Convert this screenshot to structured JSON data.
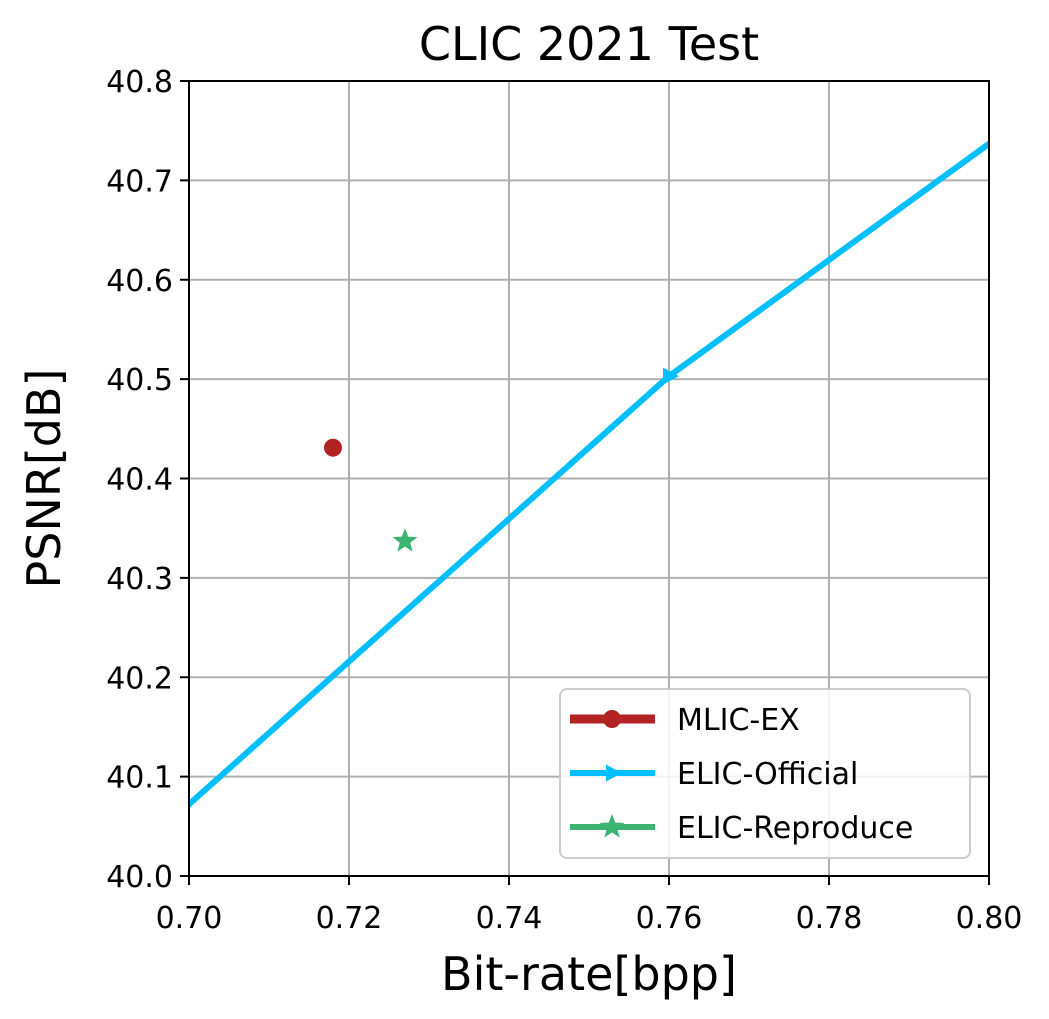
{
  "chart_data": {
    "type": "line",
    "title": "CLIC 2021 Test",
    "xlabel": "Bit-rate[bpp]",
    "ylabel": "PSNR[dB]",
    "xlim": [
      0.7,
      0.8
    ],
    "ylim": [
      40.0,
      40.8
    ],
    "xticks": [
      "0.70",
      "0.72",
      "0.74",
      "0.76",
      "0.78",
      "0.80"
    ],
    "yticks": [
      "40.0",
      "40.1",
      "40.2",
      "40.3",
      "40.4",
      "40.5",
      "40.6",
      "40.7",
      "40.8"
    ],
    "grid": true,
    "legend_position": "lower-right",
    "series": [
      {
        "name": "MLIC-EX",
        "color": "#b22222",
        "marker": "circle",
        "x": [
          0.718
        ],
        "y": [
          40.431
        ]
      },
      {
        "name": "ELIC-Official",
        "color": "#00bfff",
        "marker": "triangle-right",
        "x": [
          0.6997,
          0.76,
          0.8002
        ],
        "y": [
          40.07,
          40.503,
          40.738
        ]
      },
      {
        "name": "ELIC-Reproduce",
        "color": "#3cb371",
        "marker": "star",
        "x": [
          0.727
        ],
        "y": [
          40.337
        ]
      }
    ]
  }
}
